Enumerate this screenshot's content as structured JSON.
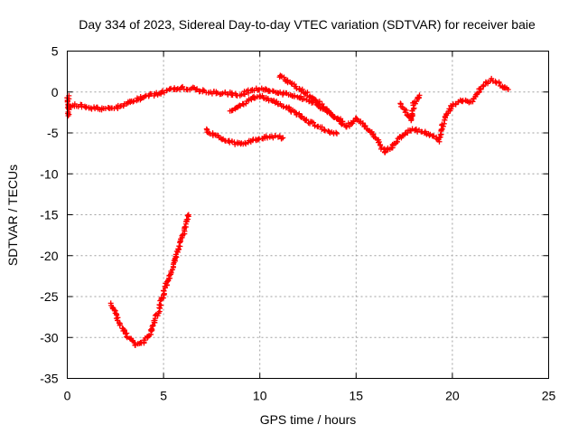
{
  "chart_data": {
    "type": "scatter",
    "title": "Day 334 of 2023, Sidereal Day-to-day VTEC variation (SDTVAR) for receiver baie",
    "xlabel": "GPS time / hours",
    "ylabel": "SDTVAR / TECUs",
    "xlim": [
      0,
      25
    ],
    "ylim": [
      -35,
      5
    ],
    "xticks": [
      "0",
      "5",
      "10",
      "15",
      "20",
      "25"
    ],
    "yticks": [
      "5",
      "0",
      "-5",
      "-10",
      "-15",
      "-20",
      "-25",
      "-30",
      "-35"
    ],
    "grid": true,
    "marker": "+",
    "color": "#ff0000",
    "series": [
      {
        "name": "main-trace",
        "points": [
          [
            0.0,
            -1.8
          ],
          [
            0.5,
            -1.6
          ],
          [
            1.0,
            -1.8
          ],
          [
            1.5,
            -2.0
          ],
          [
            2.0,
            -2.1
          ],
          [
            2.5,
            -1.9
          ],
          [
            3.0,
            -1.6
          ],
          [
            3.5,
            -1.0
          ],
          [
            4.0,
            -0.6
          ],
          [
            4.5,
            -0.3
          ],
          [
            5.0,
            0.0
          ],
          [
            5.5,
            0.3
          ],
          [
            6.0,
            0.5
          ],
          [
            6.5,
            0.4
          ],
          [
            7.0,
            0.1
          ],
          [
            7.5,
            -0.1
          ],
          [
            8.0,
            -0.1
          ],
          [
            8.5,
            -0.2
          ],
          [
            9.0,
            -0.4
          ],
          [
            9.5,
            0.2
          ],
          [
            10.0,
            0.4
          ],
          [
            10.5,
            0.2
          ],
          [
            11.0,
            -0.1
          ],
          [
            11.5,
            -0.3
          ],
          [
            12.0,
            -0.6
          ],
          [
            12.5,
            -1.0
          ],
          [
            13.0,
            -1.6
          ],
          [
            13.5,
            -2.3
          ],
          [
            14.0,
            -3.3
          ],
          [
            14.5,
            -4.3
          ],
          [
            15.0,
            -3.2
          ],
          [
            15.5,
            -4.3
          ],
          [
            16.0,
            -5.5
          ],
          [
            16.5,
            -7.4
          ],
          [
            17.0,
            -6.3
          ],
          [
            17.5,
            -5.1
          ],
          [
            18.0,
            -4.6
          ],
          [
            18.5,
            -4.9
          ],
          [
            19.0,
            -5.4
          ],
          [
            19.3,
            -5.9
          ],
          [
            19.6,
            -3.1
          ],
          [
            20.0,
            -1.5
          ],
          [
            20.5,
            -1.0
          ],
          [
            21.0,
            -1.2
          ],
          [
            21.5,
            0.5
          ],
          [
            22.0,
            1.5
          ],
          [
            22.5,
            0.9
          ],
          [
            22.9,
            0.3
          ]
        ]
      },
      {
        "name": "upper-branch",
        "points": [
          [
            11.0,
            2.0
          ],
          [
            11.5,
            1.2
          ],
          [
            12.0,
            0.5
          ],
          [
            12.5,
            -0.3
          ],
          [
            13.0,
            -1.2
          ],
          [
            13.5,
            -2.3
          ],
          [
            14.0,
            -3.2
          ],
          [
            14.3,
            -3.6
          ]
        ]
      },
      {
        "name": "lower-branch",
        "points": [
          [
            8.5,
            -2.4
          ],
          [
            9.0,
            -1.6
          ],
          [
            9.5,
            -0.9
          ],
          [
            10.0,
            -0.5
          ],
          [
            10.5,
            -0.9
          ],
          [
            11.0,
            -1.4
          ],
          [
            11.5,
            -2.0
          ],
          [
            12.0,
            -2.8
          ],
          [
            12.5,
            -3.6
          ],
          [
            13.0,
            -4.2
          ],
          [
            13.5,
            -4.8
          ],
          [
            14.0,
            -5.1
          ]
        ]
      },
      {
        "name": "branch-18h",
        "points": [
          [
            18.3,
            -0.3
          ],
          [
            18.0,
            -1.5
          ],
          [
            17.9,
            -3.4
          ],
          [
            17.6,
            -2.5
          ],
          [
            17.3,
            -1.4
          ]
        ]
      },
      {
        "name": "mid-arc",
        "points": [
          [
            7.2,
            -4.7
          ],
          [
            7.5,
            -5.0
          ],
          [
            8.0,
            -5.6
          ],
          [
            8.5,
            -6.2
          ],
          [
            9.0,
            -6.3
          ],
          [
            9.5,
            -6.0
          ],
          [
            10.0,
            -5.6
          ],
          [
            10.5,
            -5.5
          ],
          [
            11.0,
            -5.5
          ],
          [
            11.2,
            -5.6
          ]
        ]
      },
      {
        "name": "deep-dip",
        "points": [
          [
            2.3,
            -25.9
          ],
          [
            2.6,
            -27.9
          ],
          [
            3.0,
            -29.5
          ],
          [
            3.5,
            -30.8
          ],
          [
            3.9,
            -30.7
          ],
          [
            4.3,
            -29.5
          ],
          [
            4.7,
            -27.0
          ],
          [
            5.0,
            -24.5
          ],
          [
            5.4,
            -22.0
          ],
          [
            5.8,
            -19.0
          ],
          [
            6.2,
            -16.0
          ],
          [
            6.3,
            -15.0
          ]
        ]
      },
      {
        "name": "left-edge",
        "points": [
          [
            0.05,
            -0.4
          ],
          [
            0.05,
            -1.5
          ],
          [
            0.05,
            -2.4
          ],
          [
            0.05,
            -2.9
          ]
        ]
      }
    ]
  }
}
